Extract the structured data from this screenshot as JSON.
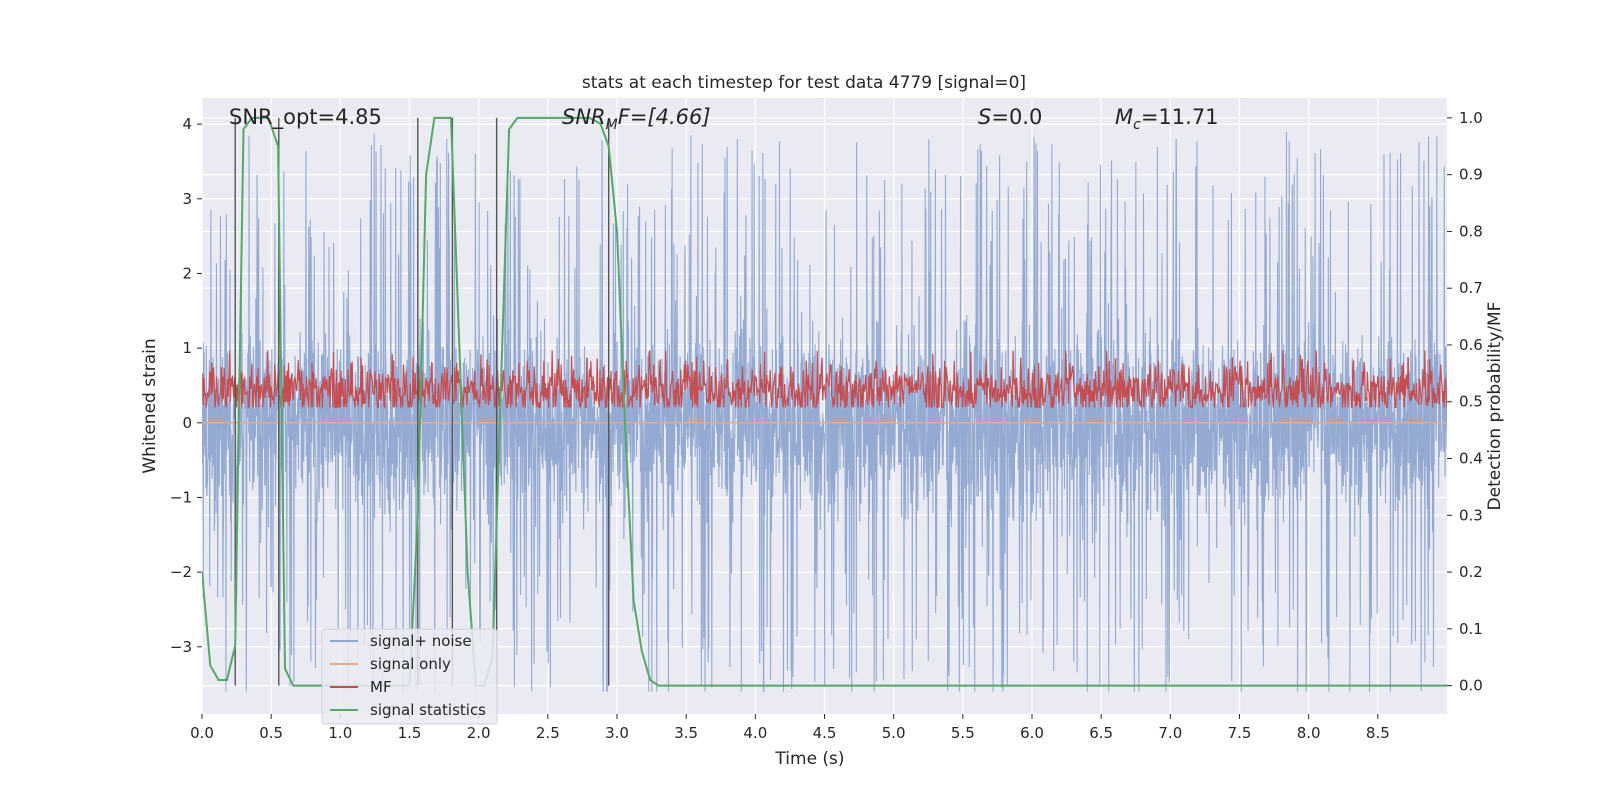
{
  "chart_data": {
    "type": "line",
    "title": "stats at each timestep for test data 4779 [signal=0]",
    "xlabel": "Time (s)",
    "ylabel_left": "Whitened strain",
    "ylabel_right": "Detection probability/MF",
    "xlim": [
      0,
      9.0
    ],
    "ylim_left": [
      -3.9,
      4.35
    ],
    "ylim_right": [
      -0.05,
      1.035
    ],
    "grid": true,
    "x_ticks": [
      "0.0",
      "0.5",
      "1.0",
      "1.5",
      "2.0",
      "2.5",
      "3.0",
      "3.5",
      "4.0",
      "4.5",
      "5.0",
      "5.5",
      "6.0",
      "6.5",
      "7.0",
      "7.5",
      "8.0",
      "8.5"
    ],
    "x_tick_values": [
      0.0,
      0.5,
      1.0,
      1.5,
      2.0,
      2.5,
      3.0,
      3.5,
      4.0,
      4.5,
      5.0,
      5.5,
      6.0,
      6.5,
      7.0,
      7.5,
      8.0,
      8.5
    ],
    "y_left_ticks": [
      "−3",
      "−2",
      "−1",
      "0",
      "1",
      "2",
      "3",
      "4"
    ],
    "y_left_tick_values": [
      -3,
      -2,
      -1,
      0,
      1,
      2,
      3,
      4
    ],
    "y_right_ticks": [
      "0.0",
      "0.1",
      "0.2",
      "0.3",
      "0.4",
      "0.5",
      "0.6",
      "0.7",
      "0.8",
      "0.9",
      "1.0"
    ],
    "y_right_tick_values": [
      0.0,
      0.1,
      0.2,
      0.3,
      0.4,
      0.5,
      0.6,
      0.7,
      0.8,
      0.9,
      1.0
    ],
    "annotations": {
      "snr_opt": "SNR_opt=4.85",
      "snr_mf_sym": "SNR",
      "snr_mf_sub": "M",
      "snr_mf_rest": "F=[4.66]",
      "s_sym": "S",
      "s_rest": "=0.0",
      "mc_sym": "M",
      "mc_sub": "c",
      "mc_rest": "=11.71"
    },
    "series": [
      {
        "name": "signal+ noise",
        "color": "#8fa6d0",
        "axis": "left",
        "sample_rate_hz": 450,
        "noise_profile": {
          "baseline_amplitude": 2.0,
          "peak_amplitude": 3.9,
          "min_amplitude": -3.6
        }
      },
      {
        "name": "signal only",
        "color": "#e8a88c",
        "axis": "left",
        "x": [
          0.0,
          9.0
        ],
        "y": [
          0.0,
          0.0
        ]
      },
      {
        "name": "MF",
        "color": "#c44e52",
        "axis": "right",
        "baseline": 0.52,
        "spread": 0.035,
        "peak": 0.59
      },
      {
        "name": "signal statistics",
        "color": "#55a868",
        "axis": "right",
        "x": [
          0.0,
          0.06,
          0.12,
          0.18,
          0.24,
          0.3,
          0.36,
          0.42,
          0.48,
          0.55,
          0.6,
          0.66,
          0.72,
          1.5,
          1.56,
          1.62,
          1.68,
          1.74,
          1.8,
          1.86,
          1.92,
          1.98,
          2.04,
          2.1,
          2.16,
          2.22,
          2.28,
          2.4,
          2.8,
          2.88,
          2.94,
          3.0,
          3.06,
          3.12,
          3.18,
          3.24,
          3.3,
          9.0
        ],
        "y": [
          0.2,
          0.035,
          0.01,
          0.01,
          0.07,
          0.98,
          1.0,
          1.0,
          1.0,
          0.95,
          0.03,
          0.0,
          0.0,
          0.0,
          0.3,
          0.9,
          1.0,
          1.0,
          1.0,
          0.6,
          0.2,
          0.0,
          0.0,
          0.05,
          0.52,
          0.98,
          1.0,
          1.0,
          1.0,
          0.99,
          0.95,
          0.8,
          0.45,
          0.15,
          0.06,
          0.01,
          0.0,
          0.0
        ]
      }
    ],
    "vertical_markers": [
      {
        "x": 0.24,
        "y_top": 1.0
      },
      {
        "x": 0.555,
        "y_top": 1.0
      },
      {
        "x": 1.56,
        "y_top": 1.0
      },
      {
        "x": 1.81,
        "y_top": 1.0
      },
      {
        "x": 2.13,
        "y_top": 1.0
      },
      {
        "x": 2.94,
        "y_top": 1.0
      }
    ],
    "legend_position": "lower-left"
  }
}
